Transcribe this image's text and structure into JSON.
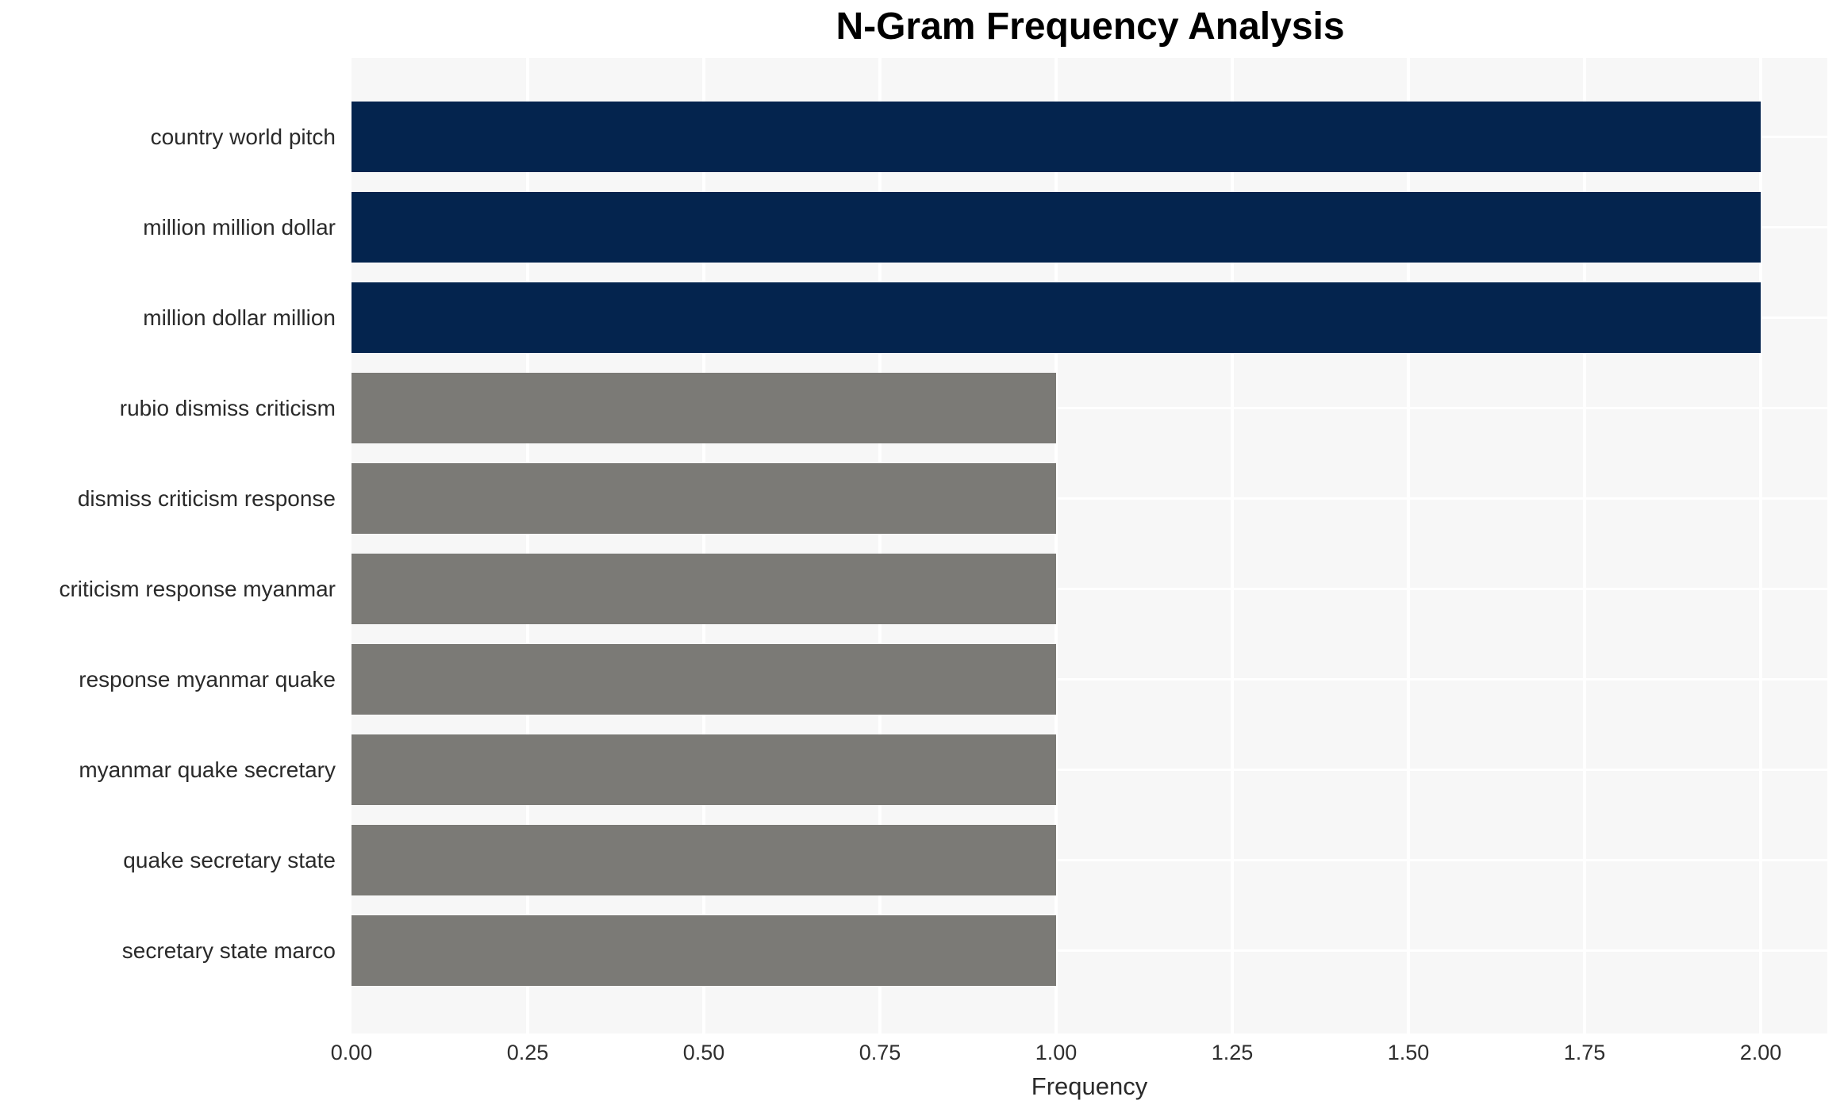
{
  "chart_data": {
    "type": "bar",
    "orientation": "horizontal",
    "title": "N-Gram Frequency Analysis",
    "xlabel": "Frequency",
    "ylabel": "",
    "grid": true,
    "legend": false,
    "xlim": [
      0,
      2.09
    ],
    "categories": [
      "country world pitch",
      "million million dollar",
      "million dollar million",
      "rubio dismiss criticism",
      "dismiss criticism response",
      "criticism response myanmar",
      "response myanmar quake",
      "myanmar quake secretary",
      "quake secretary state",
      "secretary state marco"
    ],
    "values": [
      2,
      2,
      2,
      1,
      1,
      1,
      1,
      1,
      1,
      1
    ],
    "bars": [
      {
        "label": "country world pitch",
        "value": 2,
        "color": "#04244e"
      },
      {
        "label": "million million dollar",
        "value": 2,
        "color": "#04244e"
      },
      {
        "label": "million dollar million",
        "value": 2,
        "color": "#04244e"
      },
      {
        "label": "rubio dismiss criticism",
        "value": 1,
        "color": "#7b7a76"
      },
      {
        "label": "dismiss criticism response",
        "value": 1,
        "color": "#7b7a76"
      },
      {
        "label": "criticism response myanmar",
        "value": 1,
        "color": "#7b7a76"
      },
      {
        "label": "response myanmar quake",
        "value": 1,
        "color": "#7b7a76"
      },
      {
        "label": "myanmar quake secretary",
        "value": 1,
        "color": "#7b7a76"
      },
      {
        "label": "quake secretary state",
        "value": 1,
        "color": "#7b7a76"
      },
      {
        "label": "secretary state marco",
        "value": 1,
        "color": "#7b7a76"
      }
    ],
    "xticks": [
      {
        "label": "0.00",
        "value": 0.0
      },
      {
        "label": "0.25",
        "value": 0.25
      },
      {
        "label": "0.50",
        "value": 0.5
      },
      {
        "label": "0.75",
        "value": 0.75
      },
      {
        "label": "1.00",
        "value": 1.0
      },
      {
        "label": "1.25",
        "value": 1.25
      },
      {
        "label": "1.50",
        "value": 1.5
      },
      {
        "label": "1.75",
        "value": 1.75
      },
      {
        "label": "2.00",
        "value": 2.0
      }
    ],
    "colors": {
      "high_freq_bar": "#04244e",
      "low_freq_bar": "#7b7a76",
      "plot_background": "#f7f7f7",
      "gridline": "#ffffff",
      "text": "#2a2a2a",
      "title": "#000000"
    }
  }
}
